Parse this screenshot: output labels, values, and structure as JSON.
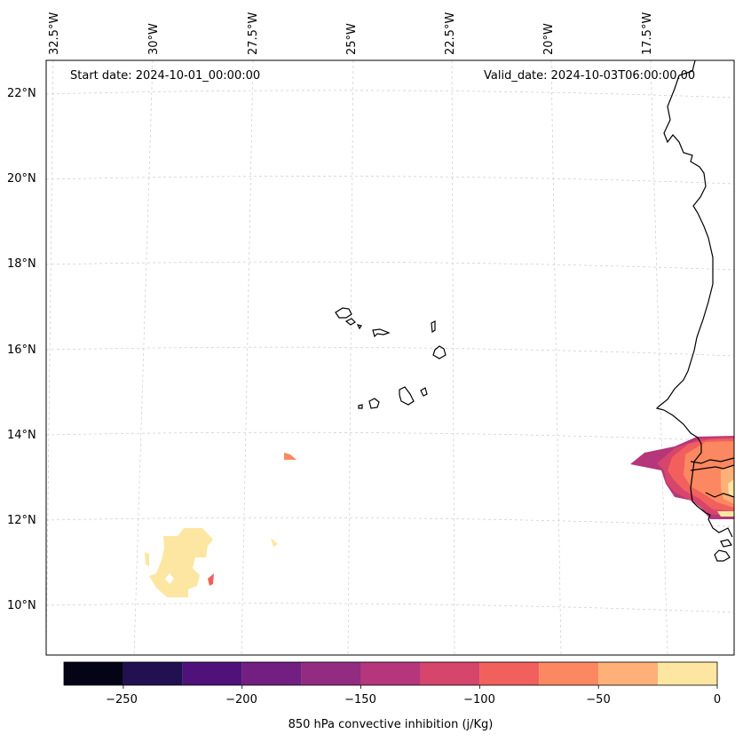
{
  "annotations": {
    "start_date": "Start date: 2024-10-01_00:00:00",
    "valid_date": "Valid_date: 2024-10-03T06:00:00.00"
  },
  "lat_labels": [
    "22°N",
    "20°N",
    "18°N",
    "16°N",
    "14°N",
    "12°N",
    "10°N"
  ],
  "lon_labels": [
    "32.5°W",
    "30°W",
    "27.5°W",
    "25°W",
    "22.5°W",
    "20°W",
    "17.5°W"
  ],
  "colorbar": {
    "label": "850 hPa convective inhibition (j/Kg)",
    "ticks": [
      "−250",
      "−200",
      "−150",
      "−100",
      "−50",
      "0"
    ],
    "levels": [
      -275,
      -250,
      -225,
      -200,
      -175,
      -150,
      -125,
      -100,
      -75,
      -50,
      -25,
      0
    ],
    "colors": [
      "#050416",
      "#221150",
      "#4f127b",
      "#721f81",
      "#932b80",
      "#b5367a",
      "#d6456c",
      "#f1605d",
      "#fb8861",
      "#feb078",
      "#fde6a1"
    ]
  }
}
